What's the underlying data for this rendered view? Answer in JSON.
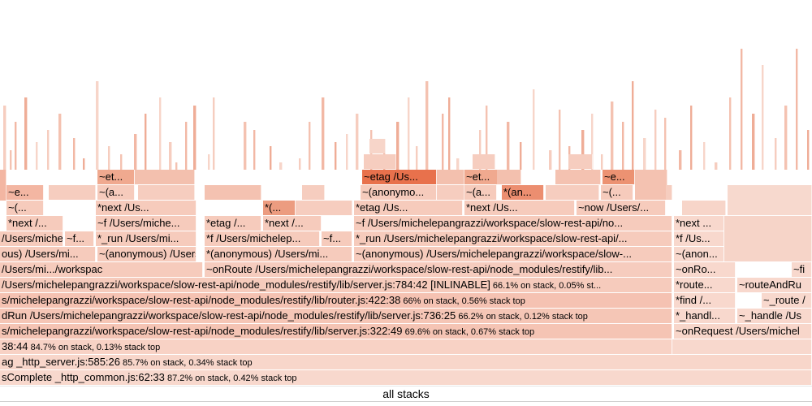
{
  "root_label": "all stacks",
  "colors": {
    "light": "#f6cfc2",
    "medium": "#efb19e",
    "hot": "#e9896a",
    "hottest": "#e0704d"
  },
  "frames": [
    {
      "id": "r1",
      "text": "sComplete _http_common.js:62:33",
      "stats": " 87.2% on stack, 0.42% stack top"
    },
    {
      "id": "r2",
      "text": "ag _http_server.js:585:26",
      "stats": " 85.7% on stack, 0.34% stack top"
    },
    {
      "id": "r3",
      "text": "38:44",
      "stats": " 84.7% on stack, 0.13% stack top"
    },
    {
      "id": "r3b",
      "text": ""
    },
    {
      "id": "r4a",
      "text": "s/michelepangrazzi/workspace/slow-rest-api/node_modules/restify/lib/server.js:322:49",
      "stats": " 69.6% on stack, 0.67% stack top"
    },
    {
      "id": "r4b",
      "text": "~onRequest /Users/michel"
    },
    {
      "id": "r5a",
      "text": "dRun /Users/michelepangrazzi/workspace/slow-rest-api/node_modules/restify/lib/server.js:736:25",
      "stats": " 66.2% on stack, 0.12% stack top"
    },
    {
      "id": "r5b",
      "text": "*_handl..."
    },
    {
      "id": "r5c",
      "text": "~_handle /Us"
    },
    {
      "id": "r6a",
      "text": "s/michelepangrazzi/workspace/slow-rest-api/node_modules/restify/lib/router.js:422:38",
      "stats": " 66% on stack, 0.56% stack top"
    },
    {
      "id": "r6b",
      "text": "*find /..."
    },
    {
      "id": "r6c",
      "text": "~_route /"
    },
    {
      "id": "r7a",
      "text": "/Users/michelepangrazzi/workspace/slow-rest-api/node_modules/restify/lib/server.js:784:42 [INLINABLE]",
      "stats": " 66.1% on stack, 0.05% st..."
    },
    {
      "id": "r7b",
      "text": "*route..."
    },
    {
      "id": "r7c",
      "text": "~routeAndRu"
    },
    {
      "id": "r8a",
      "text": "/Users/mi.../workspac"
    },
    {
      "id": "r8b",
      "text": "~onRoute /Users/michelepangrazzi/workspace/slow-rest-api/node_modules/restify/lib..."
    },
    {
      "id": "r8c",
      "text": "~onRo..."
    },
    {
      "id": "r8d",
      "text": "~fi"
    },
    {
      "id": "r9a",
      "text": "ous) /Users/mi..."
    },
    {
      "id": "r9b",
      "text": "~(anonymous) /Users/mi..."
    },
    {
      "id": "r9c",
      "text": "*(anonymous) /Users/mi..."
    },
    {
      "id": "r9d",
      "text": "~(anonymous) /Users/michelepangrazzi/workspace/slow-..."
    },
    {
      "id": "r9e",
      "text": "~(anon..."
    },
    {
      "id": "r10a",
      "text": "/Users/michele..."
    },
    {
      "id": "r10b",
      "text": "~f..."
    },
    {
      "id": "r10c",
      "text": "*_run /Users/mi..."
    },
    {
      "id": "r10d",
      "text": "*f /Users/michelep..."
    },
    {
      "id": "r10e",
      "text": "~f..."
    },
    {
      "id": "r10f",
      "text": "*_run /Users/michelepangrazzi/workspace/slow-rest-api/..."
    },
    {
      "id": "r10g",
      "text": "*f /Us..."
    },
    {
      "id": "r11a",
      "text": "*next /..."
    },
    {
      "id": "r11b",
      "text": "~f /Users/miche..."
    },
    {
      "id": "r11c",
      "text": "*etag /..."
    },
    {
      "id": "r11d",
      "text": "*next /..."
    },
    {
      "id": "r11e",
      "text": "~f /Users/michelepangrazzi/workspace/slow-rest-api/no..."
    },
    {
      "id": "r11f",
      "text": "*next ..."
    },
    {
      "id": "r12a",
      "text": "~(..."
    },
    {
      "id": "r12b",
      "text": "*next /Us..."
    },
    {
      "id": "r12c",
      "text": "*(..."
    },
    {
      "id": "r12d",
      "text": "*etag /Us..."
    },
    {
      "id": "r12e",
      "text": "*next /Us..."
    },
    {
      "id": "r12f",
      "text": "~now /Users/..."
    },
    {
      "id": "r13a",
      "text": "~e..."
    },
    {
      "id": "r13b",
      "text": "~(a..."
    },
    {
      "id": "r13c",
      "text": "~(anonymo..."
    },
    {
      "id": "r13d",
      "text": "~(a..."
    },
    {
      "id": "r13e",
      "text": "*(an..."
    },
    {
      "id": "r13f",
      "text": "~(..."
    },
    {
      "id": "r14a",
      "text": "~et..."
    },
    {
      "id": "r14b",
      "text": "~etag /Us..."
    },
    {
      "id": "r14c",
      "text": "~et..."
    },
    {
      "id": "r14d",
      "text": "~e..."
    }
  ]
}
